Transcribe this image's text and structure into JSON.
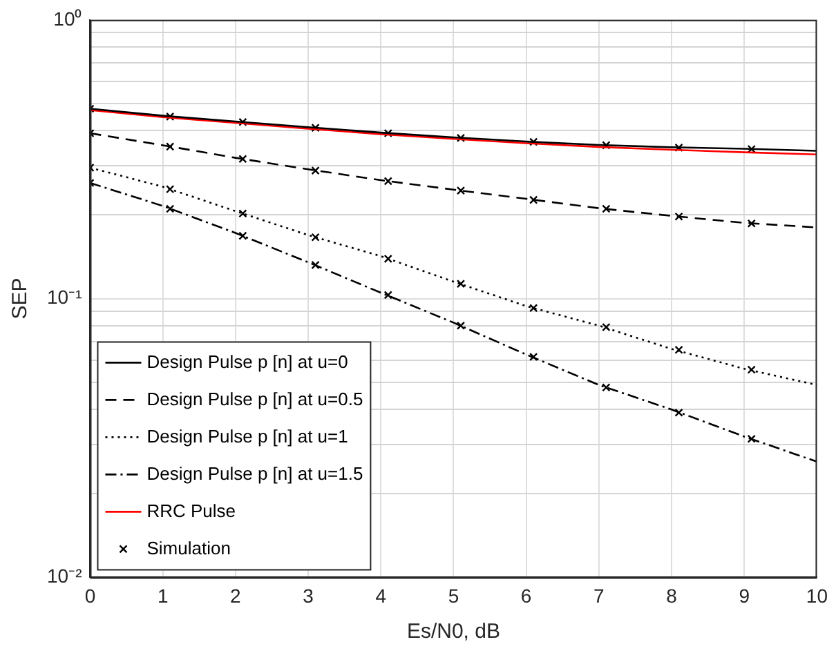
{
  "chart_data": {
    "type": "line",
    "xlabel": "Es/N0, dB",
    "ylabel": "SEP",
    "log": "y",
    "grid": true,
    "legend": "bottom left",
    "xlim": [
      0,
      10
    ],
    "xticks": [
      0,
      1,
      2,
      3,
      4,
      5,
      6,
      7,
      8,
      9,
      10
    ],
    "ylim": [
      0.01,
      1
    ],
    "yticks": [
      {
        "value": 0.01,
        "label": "10⁻²"
      },
      {
        "value": 0.02,
        "label": null
      },
      {
        "value": 0.03,
        "label": null
      },
      {
        "value": 0.04,
        "label": null
      },
      {
        "value": 0.05,
        "label": null
      },
      {
        "value": 0.06,
        "label": null
      },
      {
        "value": 0.07,
        "label": null
      },
      {
        "value": 0.08,
        "label": null
      },
      {
        "value": 0.09,
        "label": null
      },
      {
        "value": 0.1,
        "label": "10⁻¹"
      },
      {
        "value": 0.2,
        "label": null
      },
      {
        "value": 0.3,
        "label": null
      },
      {
        "value": 0.4,
        "label": null
      },
      {
        "value": 0.5,
        "label": null
      },
      {
        "value": 0.6,
        "label": null
      },
      {
        "value": 0.7,
        "label": null
      },
      {
        "value": 0.8,
        "label": null
      },
      {
        "value": 0.9,
        "label": null
      },
      {
        "value": 1,
        "label": "10⁰"
      }
    ],
    "series": [
      {
        "name": "Design Pulse p [n] at u=0",
        "color": "#000000",
        "line_style": "solid",
        "marker": "none",
        "x": [
          0,
          1,
          2,
          3,
          4,
          5,
          6,
          7,
          8,
          9,
          10
        ],
        "values": [
          0.48,
          0.453,
          0.432,
          0.412,
          0.394,
          0.379,
          0.366,
          0.356,
          0.349,
          0.345,
          0.339
        ]
      },
      {
        "name": "Design Pulse p [n] at u=0.5",
        "color": "#000000",
        "line_style": "dashed",
        "marker": "none",
        "x": [
          0,
          1,
          2,
          3,
          4,
          5,
          6,
          7,
          8,
          9,
          10
        ],
        "values": [
          0.392,
          0.355,
          0.32,
          0.291,
          0.266,
          0.246,
          0.228,
          0.211,
          0.198,
          0.187,
          0.18
        ]
      },
      {
        "name": "Design Pulse p [n] at u=1",
        "color": "#000000",
        "line_style": "dotted",
        "marker": "none",
        "x": [
          0,
          1,
          2,
          3,
          4,
          5,
          6,
          7,
          8,
          9,
          10
        ],
        "values": [
          0.295,
          0.252,
          0.206,
          0.169,
          0.142,
          0.115,
          0.094,
          0.08,
          0.066,
          0.056,
          0.049
        ]
      },
      {
        "name": "Design Pulse p [n] at u=1.5",
        "color": "#000000",
        "line_style": "dashdot",
        "marker": "none",
        "x": [
          0,
          1,
          2,
          3,
          4,
          5,
          6,
          7,
          8,
          9,
          10
        ],
        "values": [
          0.26,
          0.215,
          0.172,
          0.135,
          0.105,
          0.082,
          0.063,
          0.049,
          0.04,
          0.032,
          0.026
        ]
      },
      {
        "name": "RRC Pulse",
        "color": "#ff0000",
        "line_style": "solid",
        "marker": "none",
        "x": [
          0,
          1,
          2,
          3,
          4,
          5,
          6,
          7,
          8,
          9,
          10
        ],
        "values": [
          0.475,
          0.448,
          0.427,
          0.407,
          0.389,
          0.374,
          0.361,
          0.35,
          0.342,
          0.335,
          0.329
        ]
      },
      {
        "name": "Simulation",
        "type": "scatter",
        "color": "#000000",
        "marker": "cross",
        "x": [
          0,
          1.1,
          2.1,
          3.1,
          4.1,
          5.1,
          6.1,
          7.1,
          8.1,
          9.1,
          0,
          1.1,
          2.1,
          3.1,
          4.1,
          5.1,
          6.1,
          7.1,
          8.1,
          9.1,
          0,
          1.1,
          2.1,
          3.1,
          4.1,
          5.1,
          6.1,
          7.1,
          8.1,
          9.1,
          0,
          1.1,
          2.1,
          3.1,
          4.1,
          5.1,
          6.1,
          7.1,
          8.1,
          9.1
        ],
        "values": [
          0.48,
          0.45,
          0.43,
          0.41,
          0.392,
          0.377,
          0.365,
          0.355,
          0.348,
          0.344,
          0.392,
          0.351,
          0.317,
          0.288,
          0.264,
          0.244,
          0.226,
          0.21,
          0.197,
          0.186,
          0.295,
          0.247,
          0.202,
          0.166,
          0.139,
          0.113,
          0.0925,
          0.079,
          0.0655,
          0.0556,
          0.26,
          0.21,
          0.168,
          0.132,
          0.103,
          0.08,
          0.0618,
          0.048,
          0.039,
          0.0314
        ]
      }
    ]
  }
}
